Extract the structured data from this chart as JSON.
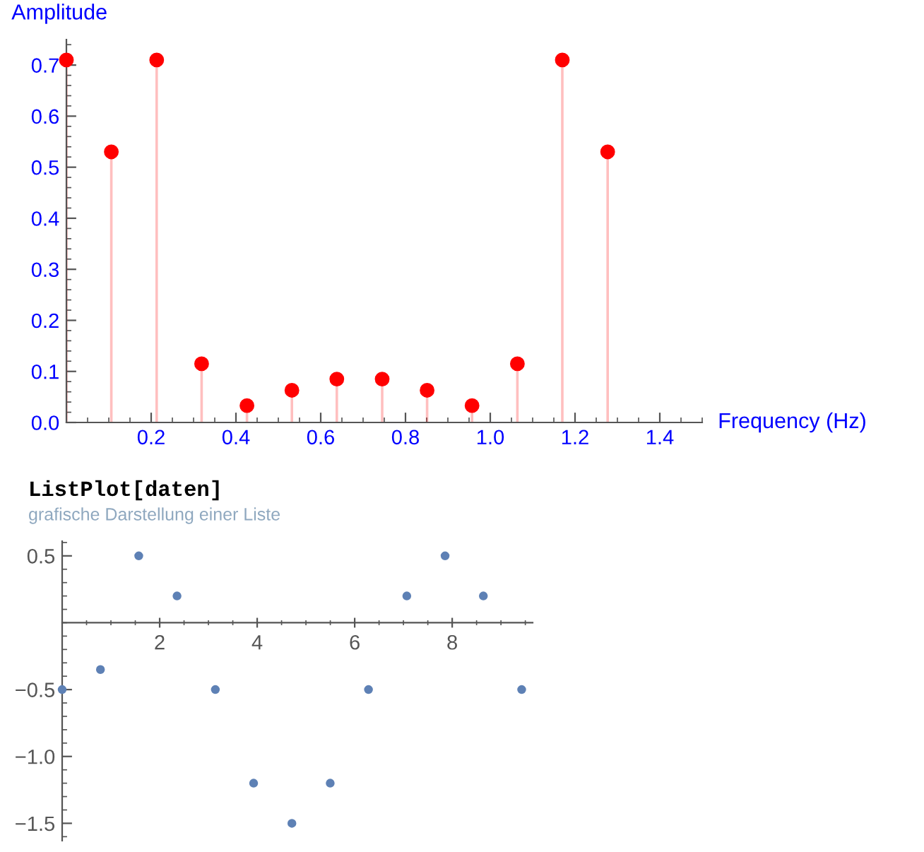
{
  "chart_data": [
    {
      "type": "lollipop",
      "xlabel": "Frequency (Hz)",
      "ylabel": "Amplitude",
      "x": [
        0,
        0.106,
        0.213,
        0.319,
        0.426,
        0.532,
        0.638,
        0.745,
        0.851,
        0.957,
        1.064,
        1.17,
        1.277
      ],
      "series": [
        {
          "color": "#ff0000",
          "values": [
            0.71,
            0.53,
            0.71,
            0.115,
            0.033,
            0.063,
            0.085,
            0.085,
            0.063,
            0.033,
            0.115,
            0.71,
            0.53
          ]
        }
      ],
      "xlim": [
        0,
        1.5
      ],
      "ylim": [
        0,
        0.75
      ],
      "xticks": [
        0.2,
        0.4,
        0.6,
        0.8,
        {
          "value": 1.0,
          "label": "1.0"
        },
        1.2,
        1.4
      ],
      "yticks": [
        {
          "value": 0.0,
          "label": "0.0"
        },
        0.1,
        0.2,
        0.3,
        0.4,
        0.5,
        0.6,
        0.7
      ],
      "marker": "circle",
      "grid": false
    },
    {
      "type": "scatter",
      "title": "ListPlot[daten]",
      "subtitle": "grafische Darstellung einer Liste",
      "x": [
        0,
        0.785,
        1.571,
        2.356,
        3.142,
        3.927,
        4.712,
        5.498,
        6.283,
        7.069,
        7.854,
        8.639,
        9.425
      ],
      "series": [
        {
          "color": "#5e81b5",
          "values": [
            -0.5,
            -0.35,
            0.5,
            0.2,
            -0.5,
            -1.2,
            -1.5,
            -1.2,
            -0.5,
            0.2,
            0.5,
            0.2,
            -0.5
          ]
        }
      ],
      "xlim": [
        0,
        9.65
      ],
      "ylim": [
        -1.63,
        0.61
      ],
      "xticks": [
        2,
        4,
        6,
        8
      ],
      "yticks": [
        {
          "value": 0.5,
          "label": "0.5"
        },
        {
          "value": -0.5,
          "label": "−0.5"
        },
        {
          "value": -1.0,
          "label": "−1.0"
        },
        {
          "value": -1.5,
          "label": "−1.5"
        }
      ],
      "marker": "circle",
      "grid": false
    }
  ]
}
